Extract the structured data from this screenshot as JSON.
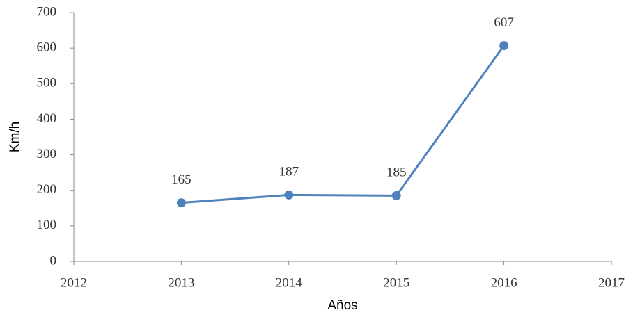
{
  "chart_data": {
    "type": "line",
    "x_label": "Años",
    "y_label": "Km/h",
    "x": [
      2013,
      2014,
      2015,
      2016
    ],
    "series": [
      {
        "name": "Km/h",
        "color": "#4f81bd",
        "values": [
          165,
          187,
          185,
          607
        ]
      }
    ],
    "xlim": [
      2012,
      2017
    ],
    "xticks": [
      2012,
      2013,
      2014,
      2015,
      2016,
      2017
    ],
    "ylim": [
      0,
      700
    ],
    "yticks": [
      0,
      100,
      200,
      300,
      400,
      500,
      600,
      700
    ],
    "grid": false,
    "legend": false,
    "data_labels": true
  }
}
